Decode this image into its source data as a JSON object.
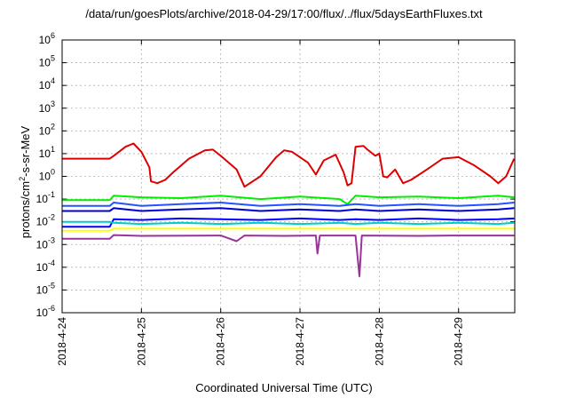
{
  "chart_data": {
    "type": "line",
    "title": "/data/run/goesPlots/archive/2018-04-29/17:00/flux/../flux/5daysEarthFluxes.txt",
    "xlabel": "Coordinated Universal Time (UTC)",
    "ylabel": {
      "pre": "protons/cm",
      "sup": "2",
      "post": "-s-sr-MeV"
    },
    "y_scale": "log",
    "ylim": [
      1e-06,
      1000000.0
    ],
    "y_ticks": [
      {
        "value": 1e-06,
        "base": "10",
        "exp": "-6"
      },
      {
        "value": 1e-05,
        "base": "10",
        "exp": "-5"
      },
      {
        "value": 0.0001,
        "base": "10",
        "exp": "-4"
      },
      {
        "value": 0.001,
        "base": "10",
        "exp": "-3"
      },
      {
        "value": 0.01,
        "base": "10",
        "exp": "-2"
      },
      {
        "value": 0.1,
        "base": "10",
        "exp": "-1"
      },
      {
        "value": 1,
        "base": "10",
        "exp": "0"
      },
      {
        "value": 10,
        "base": "10",
        "exp": "1"
      },
      {
        "value": 100,
        "base": "10",
        "exp": "2"
      },
      {
        "value": 1000,
        "base": "10",
        "exp": "3"
      },
      {
        "value": 10000,
        "base": "10",
        "exp": "4"
      },
      {
        "value": 100000,
        "base": "10",
        "exp": "5"
      },
      {
        "value": 1000000,
        "base": "10",
        "exp": "6"
      }
    ],
    "x_ticks": [
      "2018-4-24",
      "2018-4-25",
      "2018-4-26",
      "2018-4-27",
      "2018-4-28",
      "2018-4-29"
    ],
    "xlim": [
      "2018-04-24 00:00",
      "2018-04-29 17:00"
    ],
    "grid": true,
    "series": [
      {
        "color": "#dd0000",
        "values": [
          [
            0,
            6
          ],
          [
            0.2,
            6
          ],
          [
            0.4,
            6
          ],
          [
            0.6,
            6
          ],
          [
            0.65,
            8
          ],
          [
            0.8,
            20
          ],
          [
            0.9,
            28
          ],
          [
            1.0,
            12
          ],
          [
            1.1,
            2.5
          ],
          [
            1.12,
            0.6
          ],
          [
            1.2,
            0.5
          ],
          [
            1.3,
            0.7
          ],
          [
            1.4,
            1.5
          ],
          [
            1.6,
            6
          ],
          [
            1.8,
            14
          ],
          [
            1.9,
            15
          ],
          [
            2.0,
            8
          ],
          [
            2.2,
            2
          ],
          [
            2.3,
            0.35
          ],
          [
            2.5,
            1
          ],
          [
            2.7,
            7
          ],
          [
            2.8,
            14
          ],
          [
            2.9,
            12
          ],
          [
            3.1,
            4
          ],
          [
            3.2,
            1.2
          ],
          [
            3.3,
            5
          ],
          [
            3.45,
            9
          ],
          [
            3.55,
            1.5
          ],
          [
            3.6,
            0.4
          ],
          [
            3.65,
            0.5
          ],
          [
            3.7,
            20
          ],
          [
            3.8,
            22
          ],
          [
            3.85,
            15
          ],
          [
            3.95,
            8
          ],
          [
            4.0,
            10
          ],
          [
            4.05,
            1
          ],
          [
            4.1,
            0.9
          ],
          [
            4.2,
            2
          ],
          [
            4.3,
            0.5
          ],
          [
            4.4,
            0.7
          ],
          [
            4.6,
            2
          ],
          [
            4.8,
            6
          ],
          [
            5.0,
            7
          ],
          [
            5.2,
            3
          ],
          [
            5.4,
            1
          ],
          [
            5.5,
            0.5
          ],
          [
            5.6,
            1
          ],
          [
            5.7,
            6
          ]
        ]
      },
      {
        "color": "#00ee00",
        "values": [
          [
            0,
            0.09
          ],
          [
            0.6,
            0.09
          ],
          [
            0.65,
            0.14
          ],
          [
            1.0,
            0.12
          ],
          [
            1.5,
            0.11
          ],
          [
            2.0,
            0.14
          ],
          [
            2.5,
            0.1
          ],
          [
            3.0,
            0.13
          ],
          [
            3.5,
            0.1
          ],
          [
            3.6,
            0.06
          ],
          [
            3.7,
            0.14
          ],
          [
            4.0,
            0.12
          ],
          [
            4.5,
            0.13
          ],
          [
            5.0,
            0.11
          ],
          [
            5.5,
            0.14
          ],
          [
            5.7,
            0.12
          ]
        ]
      },
      {
        "color": "#2255ff",
        "values": [
          [
            0,
            0.05
          ],
          [
            0.6,
            0.05
          ],
          [
            0.65,
            0.07
          ],
          [
            1.0,
            0.05
          ],
          [
            1.5,
            0.06
          ],
          [
            2.0,
            0.07
          ],
          [
            2.5,
            0.05
          ],
          [
            3.0,
            0.06
          ],
          [
            3.5,
            0.05
          ],
          [
            3.7,
            0.06
          ],
          [
            4.0,
            0.05
          ],
          [
            4.5,
            0.06
          ],
          [
            5.0,
            0.05
          ],
          [
            5.5,
            0.06
          ],
          [
            5.7,
            0.07
          ]
        ]
      },
      {
        "color": "#0000cc",
        "values": [
          [
            0,
            0.03
          ],
          [
            0.6,
            0.03
          ],
          [
            0.65,
            0.04
          ],
          [
            1.0,
            0.03
          ],
          [
            1.5,
            0.035
          ],
          [
            2.0,
            0.04
          ],
          [
            2.5,
            0.03
          ],
          [
            3.0,
            0.035
          ],
          [
            3.5,
            0.03
          ],
          [
            3.7,
            0.035
          ],
          [
            4.0,
            0.03
          ],
          [
            4.5,
            0.035
          ],
          [
            5.0,
            0.03
          ],
          [
            5.5,
            0.035
          ],
          [
            5.7,
            0.04
          ]
        ]
      },
      {
        "color": "#0000ff",
        "values": [
          [
            0,
            0.006
          ],
          [
            0.6,
            0.006
          ],
          [
            0.65,
            0.013
          ],
          [
            1.0,
            0.012
          ],
          [
            1.5,
            0.014
          ],
          [
            2.0,
            0.013
          ],
          [
            2.5,
            0.012
          ],
          [
            3.0,
            0.014
          ],
          [
            3.5,
            0.012
          ],
          [
            3.7,
            0.013
          ],
          [
            4.0,
            0.012
          ],
          [
            4.5,
            0.014
          ],
          [
            5.0,
            0.012
          ],
          [
            5.5,
            0.013
          ],
          [
            5.7,
            0.014
          ]
        ]
      },
      {
        "color": "#00cccc",
        "values": [
          [
            0,
            0.01
          ],
          [
            0.6,
            0.01
          ],
          [
            0.65,
            0.009
          ],
          [
            1.0,
            0.008
          ],
          [
            1.5,
            0.009
          ],
          [
            2.0,
            0.008
          ],
          [
            2.5,
            0.009
          ],
          [
            3.0,
            0.008
          ],
          [
            3.5,
            0.009
          ],
          [
            3.7,
            0.008
          ],
          [
            4.0,
            0.009
          ],
          [
            4.5,
            0.008
          ],
          [
            5.0,
            0.009
          ],
          [
            5.5,
            0.008
          ],
          [
            5.7,
            0.009
          ]
        ]
      },
      {
        "color": "#ffff00",
        "values": [
          [
            0,
            0.004
          ],
          [
            0.6,
            0.004
          ],
          [
            0.65,
            0.005
          ],
          [
            1.0,
            0.005
          ],
          [
            2.0,
            0.005
          ],
          [
            3.0,
            0.005
          ],
          [
            4.0,
            0.005
          ],
          [
            5.0,
            0.005
          ],
          [
            5.7,
            0.005
          ]
        ]
      },
      {
        "color": "#993399",
        "values": [
          [
            0,
            0.0018
          ],
          [
            0.6,
            0.0018
          ],
          [
            0.65,
            0.0026
          ],
          [
            1.0,
            0.0024
          ],
          [
            2.0,
            0.0025
          ],
          [
            2.2,
            0.0014
          ],
          [
            2.3,
            0.0025
          ],
          [
            2.8,
            0.0024
          ],
          [
            3.2,
            0.0025
          ],
          [
            3.22,
            0.0004
          ],
          [
            3.25,
            0.0025
          ],
          [
            3.7,
            0.0025
          ],
          [
            3.75,
            4e-05
          ],
          [
            3.78,
            0.0025
          ],
          [
            4.5,
            0.0024
          ],
          [
            5.0,
            0.0025
          ],
          [
            5.7,
            0.0025
          ]
        ]
      }
    ]
  }
}
